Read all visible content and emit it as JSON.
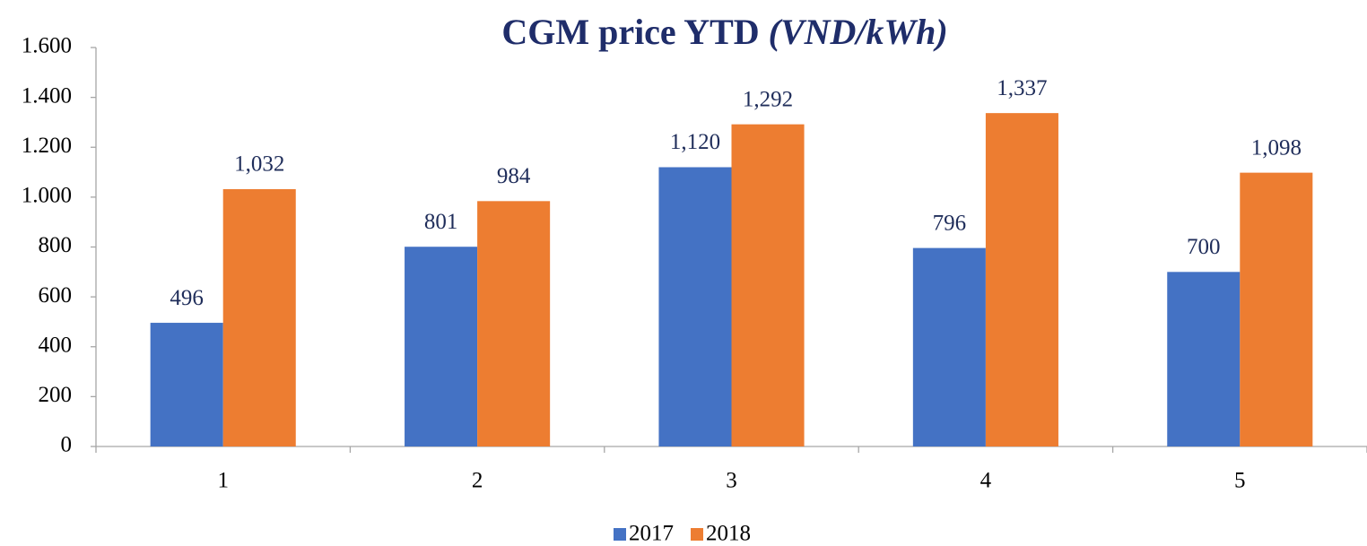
{
  "chart_data": {
    "type": "bar",
    "title": "CGM price YTD",
    "title_unit": "(VND/kWh)",
    "categories": [
      "1",
      "2",
      "3",
      "4",
      "5"
    ],
    "series": [
      {
        "name": "2017",
        "color": "#4472c4",
        "values": [
          496,
          801,
          1120,
          796,
          700
        ],
        "value_labels": [
          "496",
          "801",
          "1,120",
          "796",
          "700"
        ]
      },
      {
        "name": "2018",
        "color": "#ed7d31",
        "values": [
          1032,
          984,
          1292,
          1337,
          1098
        ],
        "value_labels": [
          "1,032",
          "984",
          "1,292",
          "1,337",
          "1,098"
        ]
      }
    ],
    "ylim": [
      0,
      1600
    ],
    "yticks": [
      0,
      200,
      400,
      600,
      800,
      {
        "value": 1000,
        "label": "1.000"
      },
      {
        "value": 1200,
        "label": "1.200"
      },
      {
        "value": 1400,
        "label": "1.400"
      },
      {
        "value": 1600,
        "label": "1.600"
      }
    ],
    "grid": false,
    "legend": "bottom"
  }
}
